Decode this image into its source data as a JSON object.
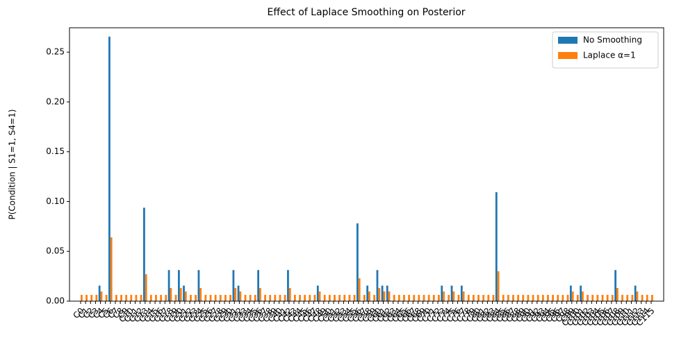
{
  "chart_data": {
    "type": "bar",
    "title": "Effect of Laplace Smoothing on Posterior",
    "y_label": "P(Condition | S1=1, S4=1)",
    "categories": [
      "C0",
      "C1",
      "C2",
      "C3",
      "C4",
      "C5",
      "C6",
      "C7",
      "C8",
      "C9",
      "C10",
      "C11",
      "C12",
      "C13",
      "C14",
      "C15",
      "C16",
      "C17",
      "C18",
      "C19",
      "C20",
      "C21",
      "C22",
      "C23",
      "C24",
      "C25",
      "C26",
      "C27",
      "C28",
      "C29",
      "C30",
      "C31",
      "C32",
      "C33",
      "C34",
      "C35",
      "C36",
      "C37",
      "C38",
      "C39",
      "C40",
      "C41",
      "C42",
      "C43",
      "C44",
      "C45",
      "C46",
      "C47",
      "C48",
      "C49",
      "C50",
      "C51",
      "C52",
      "C53",
      "C54",
      "C55",
      "C56",
      "C57",
      "C58",
      "C59",
      "C60",
      "C61",
      "C62",
      "C63",
      "C64",
      "C65",
      "C66",
      "C67",
      "C68",
      "C69",
      "C70",
      "C71",
      "C72",
      "C73",
      "C74",
      "C75",
      "C76",
      "C77",
      "C78",
      "C79",
      "C80",
      "C81",
      "C82",
      "C83",
      "C84",
      "C85",
      "C86",
      "C87",
      "C88",
      "C89",
      "C90",
      "C91",
      "C92",
      "C93",
      "C94",
      "C95",
      "C96",
      "C97",
      "C98",
      "C99",
      "C100",
      "C101",
      "C102",
      "C103",
      "C104",
      "C105",
      "C106",
      "C107",
      "C108",
      "C109",
      "C110",
      "C111",
      "C112",
      "C113",
      "C114",
      "C115"
    ],
    "series": [
      {
        "name": "No Smoothing",
        "color": "#1f77b4",
        "values": [
          0,
          0,
          0,
          0,
          0.0156,
          0,
          0.2656,
          0,
          0,
          0,
          0,
          0,
          0,
          0.0938,
          0,
          0,
          0,
          0,
          0.0312,
          0,
          0.0312,
          0.0156,
          0,
          0,
          0.0312,
          0,
          0,
          0,
          0,
          0,
          0,
          0.0312,
          0.0156,
          0,
          0,
          0,
          0.0312,
          0,
          0,
          0,
          0,
          0,
          0.0312,
          0,
          0,
          0,
          0,
          0,
          0.0156,
          0,
          0,
          0,
          0,
          0,
          0,
          0,
          0.0781,
          0,
          0.0156,
          0,
          0.0312,
          0.0156,
          0.0156,
          0,
          0,
          0,
          0,
          0,
          0,
          0,
          0,
          0,
          0,
          0.0156,
          0,
          0.0156,
          0,
          0.0156,
          0,
          0,
          0,
          0,
          0,
          0,
          0.1094,
          0,
          0,
          0,
          0,
          0,
          0,
          0,
          0,
          0,
          0,
          0,
          0,
          0,
          0,
          0.0156,
          0,
          0.0156,
          0,
          0,
          0,
          0,
          0,
          0,
          0.0312,
          0,
          0,
          0,
          0.0156,
          0,
          0,
          0
        ]
      },
      {
        "name": "Laplace α=1",
        "color": "#ff7f0e",
        "values": [
          0.0063,
          0.0063,
          0.0063,
          0.0063,
          0.0097,
          0.0063,
          0.064,
          0.0063,
          0.0063,
          0.0063,
          0.0063,
          0.0063,
          0.0063,
          0.027,
          0.0063,
          0.0063,
          0.0063,
          0.0063,
          0.0132,
          0.0063,
          0.0132,
          0.0097,
          0.0063,
          0.0063,
          0.0132,
          0.0063,
          0.0063,
          0.0063,
          0.0063,
          0.0063,
          0.0063,
          0.0132,
          0.0097,
          0.0063,
          0.0063,
          0.0063,
          0.0132,
          0.0063,
          0.0063,
          0.0063,
          0.0063,
          0.0063,
          0.0132,
          0.0063,
          0.0063,
          0.0063,
          0.0063,
          0.0063,
          0.0097,
          0.0063,
          0.0063,
          0.0063,
          0.0063,
          0.0063,
          0.0063,
          0.0063,
          0.023,
          0.0063,
          0.0097,
          0.0063,
          0.0132,
          0.0097,
          0.0097,
          0.0063,
          0.0063,
          0.0063,
          0.0063,
          0.0063,
          0.0063,
          0.0063,
          0.0063,
          0.0063,
          0.0063,
          0.0097,
          0.0063,
          0.0097,
          0.0063,
          0.0097,
          0.0063,
          0.0063,
          0.0063,
          0.0063,
          0.0063,
          0.0063,
          0.03,
          0.0063,
          0.0063,
          0.0063,
          0.0063,
          0.0063,
          0.0063,
          0.0063,
          0.0063,
          0.0063,
          0.0063,
          0.0063,
          0.0063,
          0.0063,
          0.0063,
          0.0097,
          0.0063,
          0.0097,
          0.0063,
          0.0063,
          0.0063,
          0.0063,
          0.0063,
          0.0063,
          0.0132,
          0.0063,
          0.0063,
          0.0063,
          0.0097,
          0.0063,
          0.0063,
          0.0063
        ]
      }
    ],
    "ylim": [
      0,
      0.2745
    ],
    "yticks": [
      {
        "value": 0,
        "label": "0.00"
      },
      {
        "value": 0.05,
        "label": "0.05"
      },
      {
        "value": 0.1,
        "label": "0.10"
      },
      {
        "value": 0.15,
        "label": "0.15"
      },
      {
        "value": 0.2,
        "label": "0.20"
      },
      {
        "value": 0.25,
        "label": "0.25"
      }
    ],
    "grid": false,
    "legend": "upper right"
  }
}
